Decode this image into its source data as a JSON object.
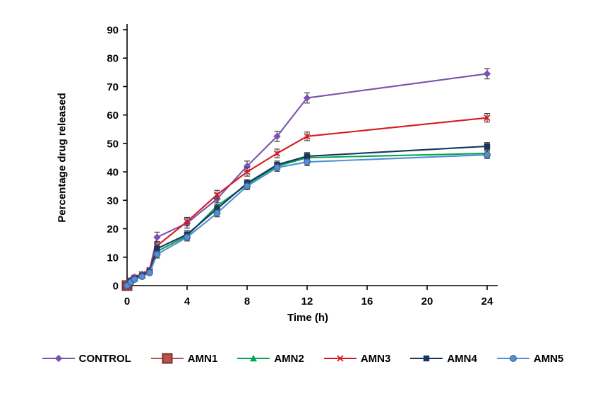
{
  "chart_data": {
    "type": "line",
    "title": "",
    "xlabel": "Time (h)",
    "ylabel": "Percentage drug released",
    "xlim": [
      0,
      24
    ],
    "ylim": [
      0,
      90
    ],
    "xticks": [
      0,
      4,
      8,
      12,
      16,
      20,
      24
    ],
    "yticks": [
      0,
      10,
      20,
      30,
      40,
      50,
      60,
      70,
      80,
      90
    ],
    "grid": false,
    "legend_position": "bottom",
    "axis_color": "#000000",
    "error_bar_color": "#404040",
    "x": [
      0,
      0.25,
      0.5,
      1,
      1.5,
      2,
      4,
      6,
      8,
      10,
      12,
      24
    ],
    "series": [
      {
        "name": "CONTROL",
        "marker": "diamond",
        "color": "#7B52AE",
        "err": 1.8,
        "values": [
          0,
          2,
          3,
          4,
          5.5,
          17,
          22,
          30.5,
          42,
          52.5,
          66,
          74.5
        ]
      },
      {
        "name": "AMN1",
        "marker": "square-large",
        "color": "#B8524C",
        "err": 0,
        "values": [
          0,
          null,
          null,
          null,
          null,
          null,
          null,
          null,
          null,
          null,
          null,
          null
        ]
      },
      {
        "name": "AMN2",
        "marker": "triangle",
        "color": "#00A651",
        "err": 1.3,
        "values": [
          0,
          1.5,
          2.5,
          3.5,
          5,
          12,
          17.5,
          28,
          35.5,
          42,
          45,
          46.5
        ]
      },
      {
        "name": "AMN3",
        "marker": "x",
        "color": "#D71920",
        "err": 1.5,
        "values": [
          0,
          1.8,
          2.8,
          4,
          5.5,
          14,
          22.5,
          32,
          40,
          46.5,
          52.5,
          59
        ]
      },
      {
        "name": "AMN4",
        "marker": "square",
        "color": "#17365D",
        "err": 1.3,
        "values": [
          0,
          1.5,
          2.5,
          3.5,
          5,
          13,
          18,
          27,
          36,
          42.5,
          45.5,
          49
        ]
      },
      {
        "name": "AMN5",
        "marker": "circle",
        "color": "#558ED5",
        "err": 1.3,
        "values": [
          0,
          1.2,
          2.2,
          3.2,
          4.5,
          11,
          17,
          25.5,
          35,
          41.5,
          43.5,
          46
        ]
      }
    ]
  }
}
